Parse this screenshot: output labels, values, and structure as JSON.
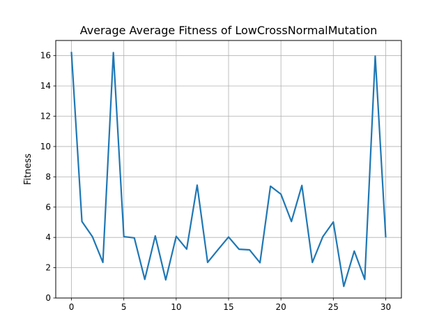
{
  "chart_data": {
    "type": "line",
    "title": "Average Average Fitness of LowCrossNormalMutation",
    "xlabel": "",
    "ylabel": "Fitness",
    "x": [
      0,
      1,
      2,
      3,
      4,
      5,
      6,
      7,
      8,
      9,
      10,
      11,
      12,
      13,
      14,
      15,
      16,
      17,
      18,
      19,
      20,
      21,
      22,
      23,
      24,
      25,
      26,
      27,
      28,
      29,
      30
    ],
    "series": [
      {
        "values": [
          16.2,
          5.05,
          4.05,
          2.35,
          16.2,
          4.05,
          3.97,
          1.23,
          4.1,
          1.2,
          4.07,
          3.23,
          7.45,
          2.35,
          3.2,
          4.03,
          3.22,
          3.18,
          2.33,
          7.38,
          6.85,
          5.05,
          7.43,
          2.35,
          4.05,
          5.02,
          0.77,
          3.1,
          1.23,
          15.97,
          4.05
        ],
        "color": "#1f77b4"
      }
    ],
    "xlim": [
      -1.5,
      31.5
    ],
    "ylim": [
      0,
      17
    ],
    "xticks": [
      0,
      5,
      10,
      15,
      20,
      25,
      30
    ],
    "yticks": [
      0,
      2,
      4,
      6,
      8,
      10,
      12,
      14,
      16
    ],
    "grid": true,
    "legend": "none"
  }
}
